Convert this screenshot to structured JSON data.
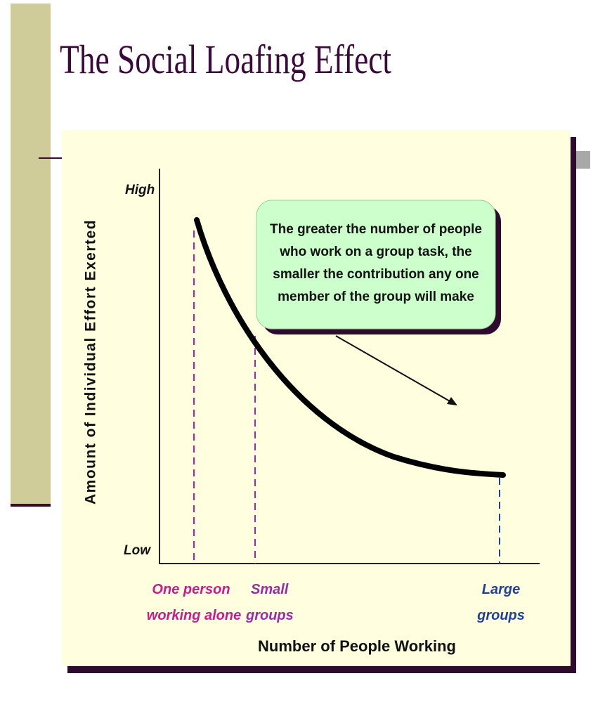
{
  "title": "The Social Loafing Effect",
  "y_axis": {
    "label": "Amount of Individual Effort Exerted",
    "high": "High",
    "low": "Low"
  },
  "x_axis": {
    "label": "Number of People Working",
    "categories": [
      {
        "lines": [
          "One person",
          "working alone"
        ]
      },
      {
        "lines": [
          "Small",
          "groups"
        ]
      },
      {
        "lines": [
          "Large",
          "groups"
        ]
      }
    ]
  },
  "callout": {
    "lines": [
      "The greater the number of people",
      "who work on a group task, the",
      "smaller the contribution any one",
      "member of the group will make"
    ]
  }
}
